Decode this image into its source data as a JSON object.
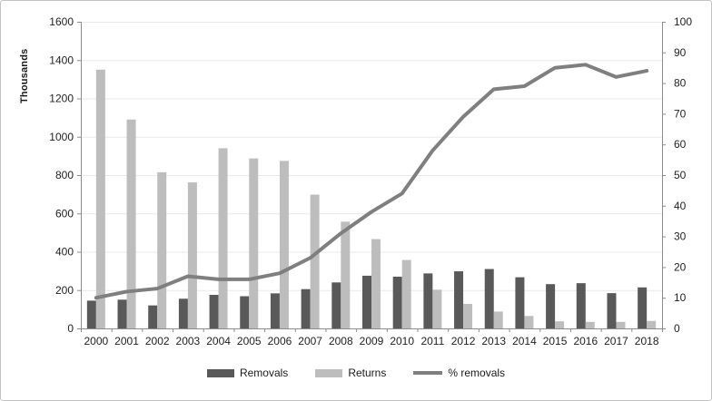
{
  "chart_data": {
    "type": "bar",
    "subtype": "grouped-bars-with-line",
    "title": "",
    "categories": [
      "2000",
      "2001",
      "2002",
      "2003",
      "2004",
      "2005",
      "2006",
      "2007",
      "2008",
      "2009",
      "2010",
      "2011",
      "2012",
      "2013",
      "2014",
      "2015",
      "2016",
      "2017",
      "2018"
    ],
    "series": [
      {
        "name": "Removals",
        "type": "bar",
        "axis": "left",
        "color": "#595959",
        "values": [
          145,
          150,
          120,
          155,
          175,
          168,
          183,
          205,
          240,
          275,
          270,
          287,
          298,
          310,
          267,
          231,
          236,
          184,
          214
        ]
      },
      {
        "name": "Returns",
        "type": "bar",
        "axis": "left",
        "color": "#BDBDBD",
        "values": [
          1350,
          1090,
          815,
          762,
          940,
          887,
          874,
          698,
          557,
          466,
          357,
          202,
          128,
          88,
          65,
          37,
          34,
          34,
          39
        ]
      },
      {
        "name": "% removals",
        "type": "line",
        "axis": "right",
        "color": "#7F7F7F",
        "values": [
          10,
          12,
          13,
          17,
          16,
          16,
          18,
          23,
          31,
          38,
          44,
          58,
          69,
          78,
          79,
          85,
          86,
          82,
          84
        ]
      }
    ],
    "left_axis": {
      "label": "Thousands",
      "min": 0,
      "max": 1600,
      "step": 200
    },
    "right_axis": {
      "label": "",
      "min": 0,
      "max": 100,
      "step": 10
    },
    "xlabel": "",
    "grid": true,
    "legend_position": "bottom"
  },
  "colors": {
    "axis_line": "#8C8C8C",
    "gridline": "#E9E9E9",
    "tick_label": "#1F1F1F",
    "background": "#FFFFFF",
    "border": "#C3C3C3"
  }
}
